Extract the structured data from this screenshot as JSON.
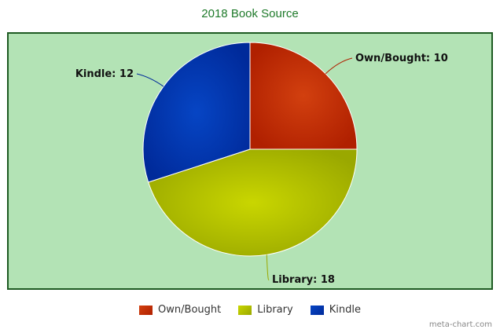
{
  "chart_data": {
    "type": "pie",
    "title": "2018 Book Source",
    "categories": [
      "Own/Bought",
      "Library",
      "Kindle"
    ],
    "values": [
      10,
      18,
      12
    ],
    "labels": [
      "Own/Bought: 10",
      "Library: 18",
      "Kindle: 12"
    ],
    "colors": [
      "#d2400f",
      "#c9d600",
      "#0645c4"
    ],
    "dark_colors": [
      "#b02000",
      "#9aa800",
      "#002a9a"
    ],
    "background": "#b3e3b5",
    "border": "#1e5a22",
    "legend_position": "bottom"
  },
  "credit": "meta-chart.com"
}
